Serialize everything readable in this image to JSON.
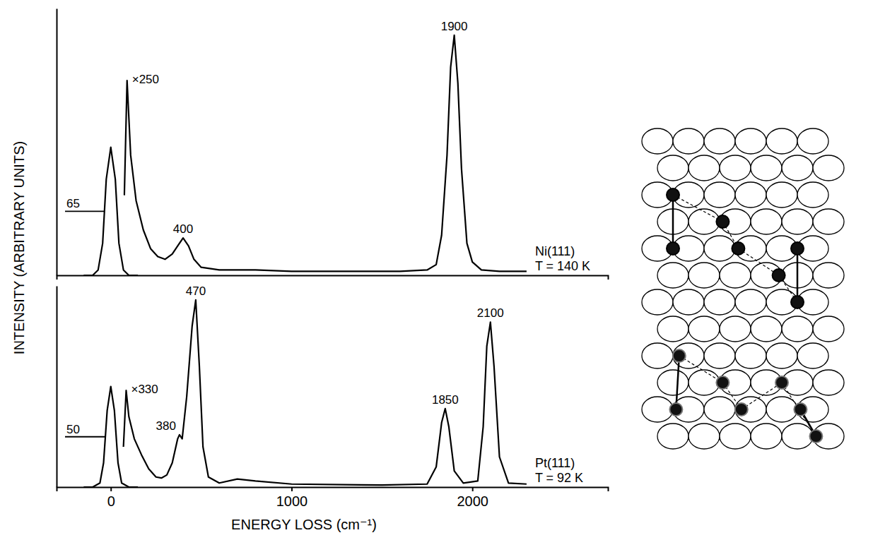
{
  "chart_data": [
    {
      "type": "line",
      "ylabel": "INTENSITY (ARBITRARY UNITS)",
      "xlim": [
        -300,
        2750
      ],
      "ylim": [
        0,
        1
      ],
      "tick_labels": false,
      "surface": "Ni(111)",
      "temperature": "T = 140 K",
      "resolution": 65,
      "magnification": "×250",
      "series": [
        {
          "x": [
            -150,
            -100,
            -70,
            -45,
            -25,
            0,
            25,
            45,
            70,
            100,
            150
          ],
          "values": [
            0,
            0,
            0.02,
            0.12,
            0.36,
            0.48,
            0.36,
            0.12,
            0.02,
            0,
            0
          ]
        },
        {
          "x": [
            75,
            90,
            110,
            140,
            180,
            220,
            260,
            300,
            340,
            370,
            400,
            430,
            460,
            500,
            600,
            800,
            1000,
            1200,
            1400,
            1600,
            1750,
            1800,
            1830,
            1860,
            1880,
            1900,
            1920,
            1940,
            1970,
            2000,
            2050,
            2150,
            2300
          ],
          "values": [
            0.3,
            0.73,
            0.45,
            0.28,
            0.17,
            0.1,
            0.07,
            0.06,
            0.08,
            0.11,
            0.14,
            0.11,
            0.06,
            0.03,
            0.02,
            0.02,
            0.015,
            0.015,
            0.015,
            0.015,
            0.02,
            0.04,
            0.15,
            0.45,
            0.78,
            0.9,
            0.72,
            0.4,
            0.12,
            0.05,
            0.02,
            0.015,
            0.015
          ]
        }
      ],
      "peak_labels": [
        400,
        1900
      ]
    },
    {
      "type": "line",
      "xlabel": "ENERGY LOSS (cm⁻¹)",
      "xlim": [
        -300,
        2750
      ],
      "xticks": [
        0,
        1000,
        2000
      ],
      "ylim": [
        0,
        1
      ],
      "tick_labels": "x",
      "surface": "Pt(111)",
      "temperature": "T = 92 K",
      "resolution": 50,
      "magnification": "×330",
      "series": [
        {
          "x": [
            -150,
            -100,
            -60,
            -40,
            -20,
            0,
            20,
            40,
            60,
            100,
            150
          ],
          "values": [
            0,
            0,
            0.02,
            0.12,
            0.38,
            0.5,
            0.38,
            0.12,
            0.02,
            0,
            0
          ]
        },
        {
          "x": [
            70,
            85,
            100,
            130,
            170,
            210,
            250,
            280,
            310,
            340,
            370,
            380,
            395,
            420,
            450,
            470,
            490,
            510,
            540,
            600,
            700,
            800,
            1000,
            1500,
            1750,
            1800,
            1830,
            1850,
            1870,
            1900,
            1950,
            2030,
            2060,
            2080,
            2100,
            2120,
            2150,
            2200,
            2300
          ],
          "values": [
            0.2,
            0.48,
            0.35,
            0.24,
            0.16,
            0.09,
            0.05,
            0.045,
            0.06,
            0.12,
            0.24,
            0.26,
            0.24,
            0.45,
            0.8,
            0.93,
            0.6,
            0.2,
            0.05,
            0.02,
            0.04,
            0.03,
            0.015,
            0.01,
            0.015,
            0.1,
            0.32,
            0.39,
            0.3,
            0.08,
            0.02,
            0.03,
            0.3,
            0.7,
            0.82,
            0.6,
            0.15,
            0.02,
            0.015
          ]
        }
      ],
      "peak_labels": [
        380,
        470,
        1850,
        2100
      ]
    }
  ]
}
